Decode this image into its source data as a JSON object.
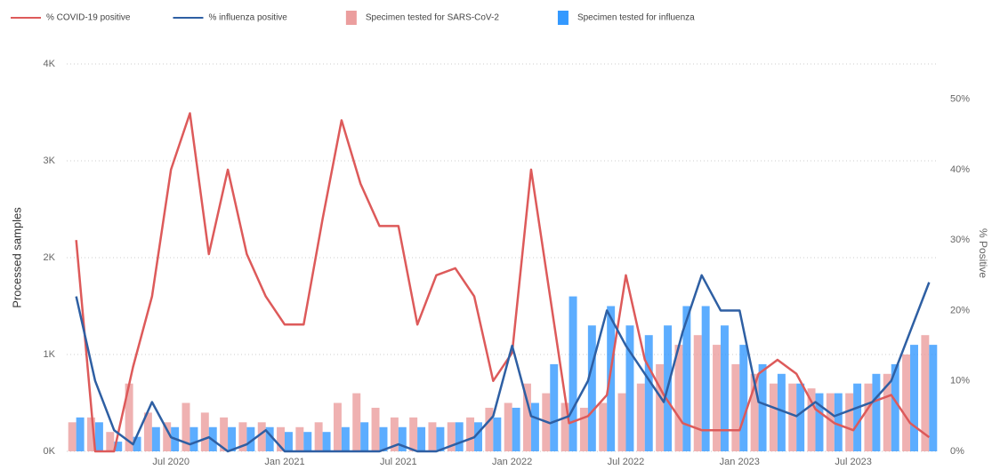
{
  "chart_data": {
    "type": "bar-line",
    "categories": [
      null,
      null,
      null,
      null,
      null,
      "Jul 2020",
      null,
      null,
      null,
      null,
      null,
      "Jan 2021",
      null,
      null,
      null,
      null,
      null,
      "Jul 2021",
      null,
      null,
      null,
      null,
      null,
      "Jan 2022",
      null,
      null,
      null,
      null,
      null,
      "Jul 2022",
      null,
      null,
      null,
      null,
      null,
      "Jan 2023",
      null,
      null,
      null,
      null,
      null,
      "Jul 2023",
      null,
      null,
      null,
      null
    ],
    "y_label": "Processed samples",
    "y2_label": "% Positive",
    "ylim": [
      0,
      4000
    ],
    "yticks": [
      {
        "value": 0,
        "label": "0K"
      },
      {
        "value": 1000,
        "label": "1K"
      },
      {
        "value": 2000,
        "label": "2K"
      },
      {
        "value": 3000,
        "label": "3K"
      },
      {
        "value": 4000,
        "label": "4K"
      }
    ],
    "y2lim": [
      0,
      55
    ],
    "y2ticks": [
      {
        "value": 0,
        "label": "0%"
      },
      {
        "value": 10,
        "label": "10%"
      },
      {
        "value": 20,
        "label": "20%"
      },
      {
        "value": 30,
        "label": "30%"
      },
      {
        "value": 40,
        "label": "40%"
      },
      {
        "value": 50,
        "label": "50%"
      }
    ],
    "grid": true,
    "series": [
      {
        "name": "% COVID-19 positive",
        "kind": "line",
        "axis": "y2",
        "color": "#dd5a5a",
        "values": [
          30,
          0,
          0,
          12,
          22,
          40,
          48,
          28,
          40,
          28,
          22,
          18,
          18,
          33,
          47,
          38,
          32,
          32,
          18,
          25,
          26,
          22,
          10,
          14,
          40,
          22,
          4,
          5,
          8,
          25,
          13,
          8,
          4,
          3,
          3,
          3,
          11,
          13,
          11,
          6,
          4,
          3,
          7,
          8,
          4,
          2
        ]
      },
      {
        "name": "% influenza positive",
        "kind": "line",
        "axis": "y2",
        "color": "#2e5fa3",
        "values": [
          22,
          10,
          3,
          1,
          7,
          2,
          1,
          2,
          0,
          1,
          3,
          0,
          0,
          0,
          0,
          0,
          0,
          1,
          0,
          0,
          1,
          2,
          5,
          15,
          5,
          4,
          5,
          10,
          20,
          15,
          11,
          7,
          17,
          25,
          20,
          20,
          7,
          6,
          5,
          7,
          5,
          6,
          7,
          10,
          17,
          24
        ]
      },
      {
        "name": "Specimen tested for SARS-CoV-2",
        "kind": "bar",
        "color": "#eb9e9e",
        "values": [
          300,
          350,
          200,
          700,
          400,
          300,
          500,
          400,
          350,
          300,
          300,
          250,
          250,
          300,
          500,
          600,
          450,
          350,
          350,
          300,
          300,
          350,
          450,
          500,
          700,
          600,
          500,
          450,
          500,
          600,
          700,
          900,
          1100,
          1200,
          1100,
          900,
          800,
          700,
          700,
          650,
          600,
          600,
          700,
          800,
          1000,
          1200
        ]
      },
      {
        "name": "Specimen tested for influenza",
        "kind": "bar",
        "color": "#3399ff",
        "values": [
          350,
          300,
          100,
          150,
          250,
          250,
          250,
          250,
          250,
          250,
          250,
          200,
          200,
          200,
          250,
          300,
          250,
          250,
          250,
          250,
          300,
          300,
          350,
          450,
          500,
          900,
          1600,
          1300,
          1500,
          1300,
          1200,
          1300,
          1500,
          1500,
          1300,
          1100,
          900,
          800,
          700,
          600,
          600,
          700,
          800,
          900,
          1100,
          1100
        ]
      }
    ]
  }
}
